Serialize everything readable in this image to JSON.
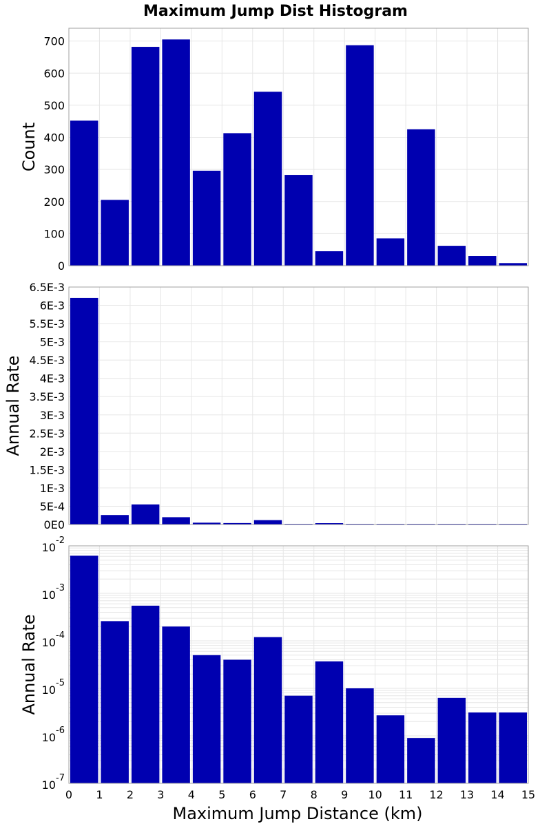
{
  "chart_data": {
    "type": "bar",
    "title": "Maximum Jump Dist Histogram",
    "xlabel": "Maximum Jump Distance (km)",
    "x": [
      0.5,
      1.5,
      2.5,
      3.5,
      4.5,
      5.5,
      6.5,
      7.5,
      8.5,
      9.5,
      10.5,
      11.5,
      12.5,
      13.5,
      14.5
    ],
    "xlim": [
      0,
      15
    ],
    "xticks": [
      "0",
      "1",
      "2",
      "3",
      "4",
      "5",
      "6",
      "7",
      "8",
      "9",
      "10",
      "11",
      "12",
      "13",
      "14",
      "15"
    ],
    "bar_color": "#0000b0",
    "grid": true,
    "panels": [
      {
        "name": "count",
        "ylabel": "Count",
        "scale": "linear",
        "ylim": [
          0,
          740
        ],
        "yticks": [
          0,
          100,
          200,
          300,
          400,
          500,
          600,
          700
        ],
        "ytick_labels": [
          "0",
          "100",
          "200",
          "300",
          "400",
          "500",
          "600",
          "700"
        ],
        "values": [
          452,
          205,
          682,
          705,
          296,
          413,
          542,
          283,
          45,
          687,
          85,
          425,
          62,
          30,
          8
        ]
      },
      {
        "name": "annual-rate-linear",
        "ylabel": "Annual Rate",
        "scale": "linear",
        "ylim": [
          0,
          0.0065
        ],
        "yticks": [
          0,
          0.0005,
          0.001,
          0.0015,
          0.002,
          0.0025,
          0.003,
          0.0035,
          0.004,
          0.0045,
          0.005,
          0.0055,
          0.006,
          0.0065
        ],
        "ytick_labels": [
          "0E0",
          "5E-4",
          "1E-3",
          "1.5E-3",
          "2E-3",
          "2.5E-3",
          "3E-3",
          "3.5E-3",
          "4E-3",
          "4.5E-3",
          "5E-3",
          "5.5E-3",
          "6E-3",
          "6.5E-3"
        ],
        "values": [
          0.0062,
          0.00026,
          0.00055,
          0.0002,
          5e-05,
          4e-05,
          0.00012,
          7e-06,
          3.7e-05,
          1e-05,
          2.7e-06,
          9e-07,
          6.3e-06,
          3.1e-06,
          3.1e-06
        ]
      },
      {
        "name": "annual-rate-log",
        "ylabel": "Annual Rate",
        "scale": "log",
        "ylim": [
          1e-07,
          0.01
        ],
        "yticks": [
          1e-07,
          1e-06,
          1e-05,
          0.0001,
          0.001,
          0.01
        ],
        "ytick_bases": [
          "10",
          "10",
          "10",
          "10",
          "10",
          "10"
        ],
        "ytick_exps": [
          "-7",
          "-6",
          "-5",
          "-4",
          "-3",
          "-2"
        ],
        "values": [
          0.0062,
          0.00026,
          0.00055,
          0.0002,
          5e-05,
          4e-05,
          0.00012,
          7e-06,
          3.7e-05,
          1e-05,
          2.7e-06,
          9e-07,
          6.3e-06,
          3.1e-06,
          3.1e-06
        ]
      }
    ]
  }
}
